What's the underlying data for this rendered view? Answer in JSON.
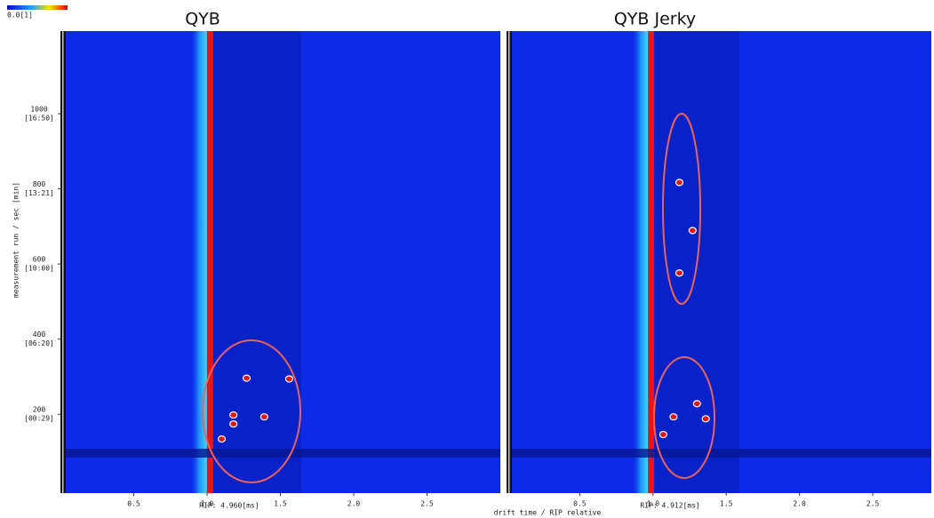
{
  "colorbar_label": "0.0[1]",
  "x_axis_label": "drift time / RIP relative",
  "y_axis_label": "measurement run / sec [min]",
  "chart_data": [
    {
      "type": "heatmap",
      "title": "QYB",
      "rip_label": "RIP: 4.960[ms]",
      "xlim": [
        0,
        3
      ],
      "xticks": [
        0.5,
        {
          "value": 1.0,
          "label": "1.0"
        },
        1.5,
        {
          "value": 2.0,
          "label": "2.0"
        },
        2.5
      ],
      "ylim": [
        -10,
        1220
      ],
      "yticks": [
        200,
        400,
        600,
        800,
        1000
      ],
      "ytick_times": [
        "[00:29]",
        "[06:20]",
        "[10:00]",
        "[13:21]",
        "[16:50]"
      ],
      "peaks": {
        "x": [
          1.27,
          1.56,
          1.18,
          1.39,
          1.1,
          1.18
        ],
        "y": [
          296,
          294,
          198,
          193,
          134,
          174
        ]
      }
    },
    {
      "type": "heatmap",
      "title": "QYB Jerky",
      "rip_label": "RIP: 4.912[ms]",
      "xlim": [
        0,
        2.9
      ],
      "xticks": [
        0.5,
        {
          "value": 1.0,
          "label": "1.0"
        },
        1.5,
        {
          "value": 2.0,
          "label": "2.0"
        },
        2.5
      ],
      "ylim": [
        -10,
        1220
      ],
      "peaks": {
        "x": [
          1.18,
          1.27,
          1.18,
          1.3,
          1.36,
          1.14,
          1.07
        ],
        "y": [
          817,
          689,
          576,
          228,
          188,
          193,
          146
        ]
      }
    }
  ]
}
